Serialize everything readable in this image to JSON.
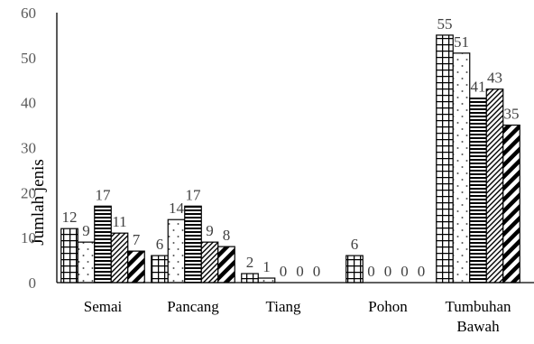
{
  "chart_data": {
    "type": "bar",
    "ylabel": "Jumlah jenis",
    "xlabel": "",
    "ylim": [
      0,
      60
    ],
    "yticks": [
      0,
      10,
      20,
      30,
      40,
      50,
      60
    ],
    "grid": false,
    "legend": "none",
    "categories": [
      [
        "Semai"
      ],
      [
        "Pancang"
      ],
      [
        "Tiang"
      ],
      [
        "Pohon"
      ],
      [
        "Tumbuhan",
        "Bawah"
      ]
    ],
    "series": [
      {
        "pattern": "grid",
        "values": [
          12,
          6,
          2,
          6,
          55
        ]
      },
      {
        "pattern": "dots",
        "values": [
          9,
          14,
          1,
          0,
          51
        ]
      },
      {
        "pattern": "horizontal-stripes",
        "values": [
          17,
          17,
          0,
          0,
          41
        ]
      },
      {
        "pattern": "thin-diagonal",
        "values": [
          11,
          9,
          0,
          0,
          43
        ]
      },
      {
        "pattern": "thick-diagonal",
        "values": [
          7,
          8,
          0,
          0,
          35
        ]
      }
    ],
    "colors": {
      "bar_stroke": "#000000",
      "axis": "#000000",
      "tick_text": "#595959",
      "label_text": "#404040"
    }
  }
}
